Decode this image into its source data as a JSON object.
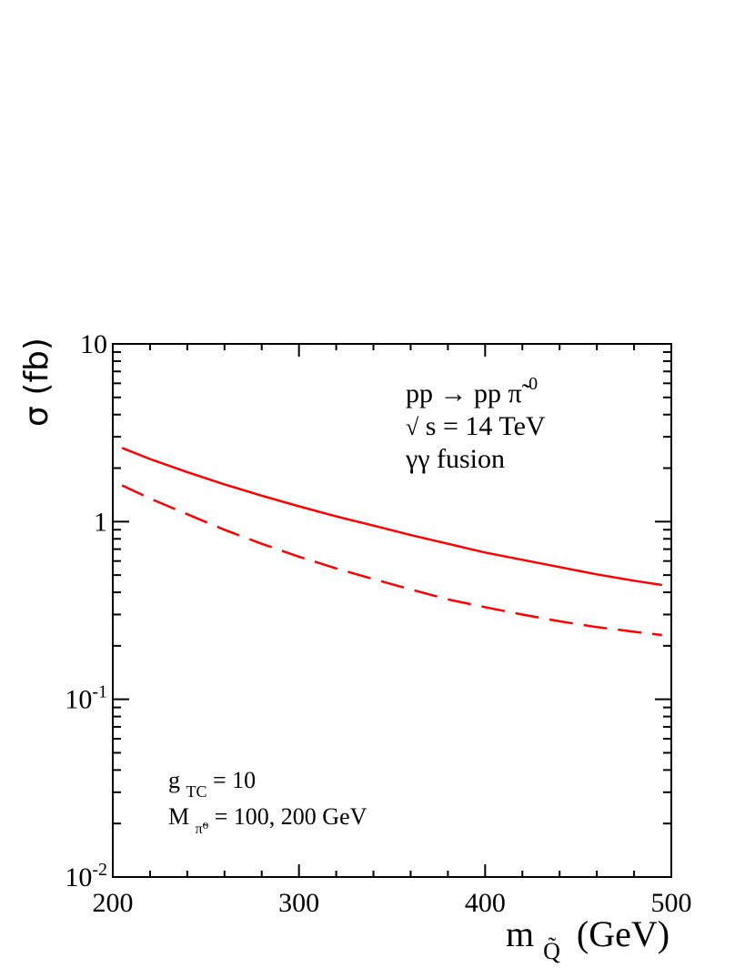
{
  "chart_data": {
    "type": "line",
    "y_scale": "log",
    "xlim": [
      200,
      500
    ],
    "ylim": [
      0.01,
      10
    ],
    "grid": false,
    "y_axis_label": "σ (fb)",
    "x_axis_label": {
      "main": "m",
      "sub": "Q̃",
      "unit": "(GeV)"
    },
    "x_ticks": [
      {
        "value": 200,
        "label": "200"
      },
      {
        "value": 300,
        "label": "300"
      },
      {
        "value": 400,
        "label": "400"
      },
      {
        "value": 500,
        "label": "500"
      }
    ],
    "y_ticks": [
      {
        "value": 10,
        "base": "10",
        "exp": ""
      },
      {
        "value": 1,
        "base": "1",
        "exp": ""
      },
      {
        "value": 0.1,
        "base": "10",
        "exp": "-1"
      },
      {
        "value": 0.01,
        "base": "10",
        "exp": "-2"
      }
    ],
    "process_label": {
      "text": "pp → pp ",
      "particle": "π̃",
      "sup": "0"
    },
    "energy_label": {
      "root": "√",
      "text": "s = 14 TeV"
    },
    "fusion_label": "γγ fusion",
    "coupling_label": {
      "main": "g",
      "sub": "TC",
      "rest": " = 10"
    },
    "mass_label": {
      "main": "M",
      "sub": "π̃⁰",
      "rest": " = 100, 200 GeV"
    },
    "series": [
      {
        "style": "solid",
        "color": "#ff0000",
        "x": [
          205,
          220,
          240,
          260,
          280,
          300,
          320,
          340,
          360,
          380,
          400,
          420,
          440,
          460,
          480,
          495
        ],
        "y": [
          2.6,
          2.25,
          1.9,
          1.62,
          1.4,
          1.22,
          1.07,
          0.95,
          0.84,
          0.75,
          0.67,
          0.61,
          0.555,
          0.505,
          0.465,
          0.44
        ]
      },
      {
        "style": "dashed",
        "color": "#ff0000",
        "x": [
          205,
          220,
          240,
          260,
          280,
          300,
          320,
          340,
          360,
          380,
          400,
          420,
          440,
          460,
          480,
          495
        ],
        "y": [
          1.6,
          1.35,
          1.1,
          0.9,
          0.75,
          0.635,
          0.545,
          0.475,
          0.415,
          0.365,
          0.33,
          0.3,
          0.275,
          0.255,
          0.24,
          0.23
        ]
      }
    ]
  }
}
